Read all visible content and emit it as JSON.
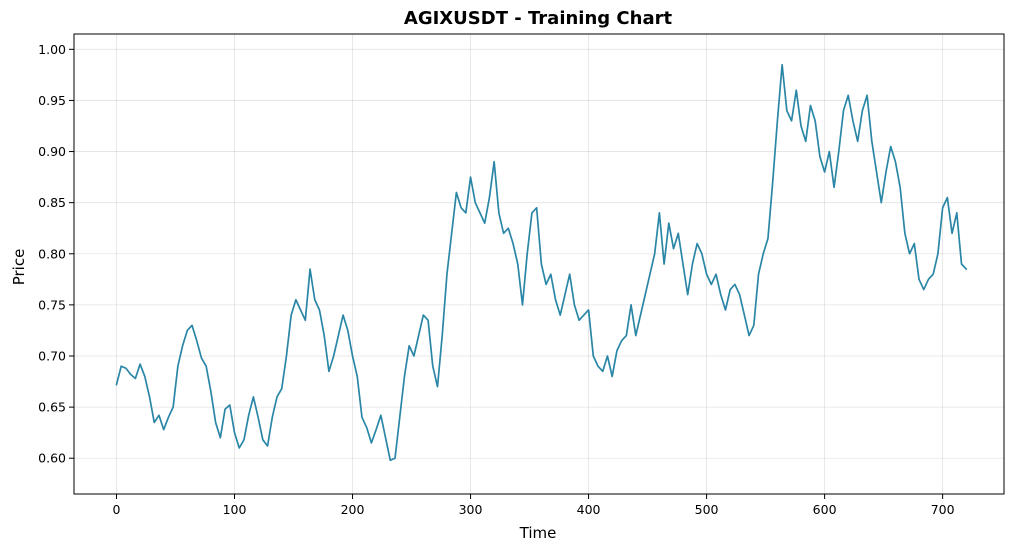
{
  "chart_data": {
    "type": "line",
    "title": "AGIXUSDT - Training Chart",
    "xlabel": "Time",
    "ylabel": "Price",
    "xlim": [
      -36,
      752
    ],
    "ylim": [
      0.565,
      1.015
    ],
    "xticks": [
      0,
      100,
      200,
      300,
      400,
      500,
      600,
      700
    ],
    "yticks": [
      0.6,
      0.65,
      0.7,
      0.75,
      0.8,
      0.85,
      0.9,
      0.95,
      1.0
    ],
    "ytick_labels": [
      "0.60",
      "0.65",
      "0.70",
      "0.75",
      "0.80",
      "0.85",
      "0.90",
      "0.95",
      "1.00"
    ],
    "grid": true,
    "line_color": "#2a86a6",
    "series": [
      {
        "x": [
          0,
          4,
          8,
          12,
          16,
          20,
          24,
          28,
          32,
          36,
          40,
          44,
          48,
          52,
          56,
          60,
          64,
          68,
          72,
          76,
          80,
          84,
          88,
          92,
          96,
          100,
          104,
          108,
          112,
          116,
          120,
          124,
          128,
          132,
          136,
          140,
          144,
          148,
          152,
          156,
          160,
          164,
          168,
          172,
          176,
          180,
          184,
          188,
          192,
          196,
          200,
          204,
          208,
          212,
          216,
          220,
          224,
          228,
          232,
          236,
          240,
          244,
          248,
          252,
          256,
          260,
          264,
          268,
          272,
          276,
          280,
          284,
          288,
          292,
          296,
          300,
          304,
          308,
          312,
          316,
          320,
          324,
          328,
          332,
          336,
          340,
          344,
          348,
          352,
          356,
          360,
          364,
          368,
          372,
          376,
          380,
          384,
          388,
          392,
          396,
          400,
          404,
          408,
          412,
          416,
          420,
          424,
          428,
          432,
          436,
          440,
          444,
          448,
          452,
          456,
          460,
          464,
          468,
          472,
          476,
          480,
          484,
          488,
          492,
          496,
          500,
          504,
          508,
          512,
          516,
          520,
          524,
          528,
          532,
          536,
          540,
          544,
          548,
          552,
          556,
          560,
          564,
          568,
          572,
          576,
          580,
          584,
          588,
          592,
          596,
          600,
          604,
          608,
          612,
          616,
          620,
          624,
          628,
          632,
          636,
          640,
          644,
          648,
          652,
          656,
          660,
          664,
          668,
          672,
          676,
          680,
          684,
          688,
          692,
          696,
          700,
          704,
          708,
          712,
          716,
          720
        ],
        "y": [
          0.672,
          0.69,
          0.688,
          0.682,
          0.678,
          0.692,
          0.68,
          0.66,
          0.635,
          0.642,
          0.628,
          0.64,
          0.65,
          0.69,
          0.71,
          0.725,
          0.73,
          0.715,
          0.698,
          0.69,
          0.665,
          0.635,
          0.62,
          0.648,
          0.652,
          0.625,
          0.61,
          0.618,
          0.642,
          0.66,
          0.64,
          0.618,
          0.612,
          0.64,
          0.66,
          0.668,
          0.7,
          0.74,
          0.755,
          0.745,
          0.735,
          0.785,
          0.755,
          0.745,
          0.72,
          0.685,
          0.7,
          0.72,
          0.74,
          0.725,
          0.7,
          0.68,
          0.64,
          0.63,
          0.615,
          0.628,
          0.642,
          0.62,
          0.598,
          0.6,
          0.64,
          0.68,
          0.71,
          0.7,
          0.72,
          0.74,
          0.735,
          0.69,
          0.67,
          0.72,
          0.78,
          0.82,
          0.86,
          0.845,
          0.84,
          0.875,
          0.85,
          0.84,
          0.83,
          0.855,
          0.89,
          0.84,
          0.82,
          0.825,
          0.81,
          0.79,
          0.75,
          0.8,
          0.84,
          0.845,
          0.79,
          0.77,
          0.78,
          0.755,
          0.74,
          0.76,
          0.78,
          0.75,
          0.735,
          0.74,
          0.745,
          0.7,
          0.69,
          0.685,
          0.7,
          0.68,
          0.705,
          0.715,
          0.72,
          0.75,
          0.72,
          0.74,
          0.76,
          0.78,
          0.8,
          0.84,
          0.79,
          0.83,
          0.805,
          0.82,
          0.79,
          0.76,
          0.79,
          0.81,
          0.8,
          0.78,
          0.77,
          0.78,
          0.76,
          0.745,
          0.765,
          0.77,
          0.76,
          0.74,
          0.72,
          0.73,
          0.78,
          0.8,
          0.815,
          0.87,
          0.93,
          0.985,
          0.94,
          0.93,
          0.96,
          0.925,
          0.91,
          0.945,
          0.93,
          0.895,
          0.88,
          0.9,
          0.865,
          0.9,
          0.94,
          0.955,
          0.93,
          0.91,
          0.94,
          0.955,
          0.91,
          0.88,
          0.85,
          0.88,
          0.905,
          0.89,
          0.865,
          0.82,
          0.8,
          0.81,
          0.775,
          0.765,
          0.775,
          0.78,
          0.8,
          0.845,
          0.855,
          0.82,
          0.84,
          0.79,
          0.785
        ]
      }
    ]
  }
}
